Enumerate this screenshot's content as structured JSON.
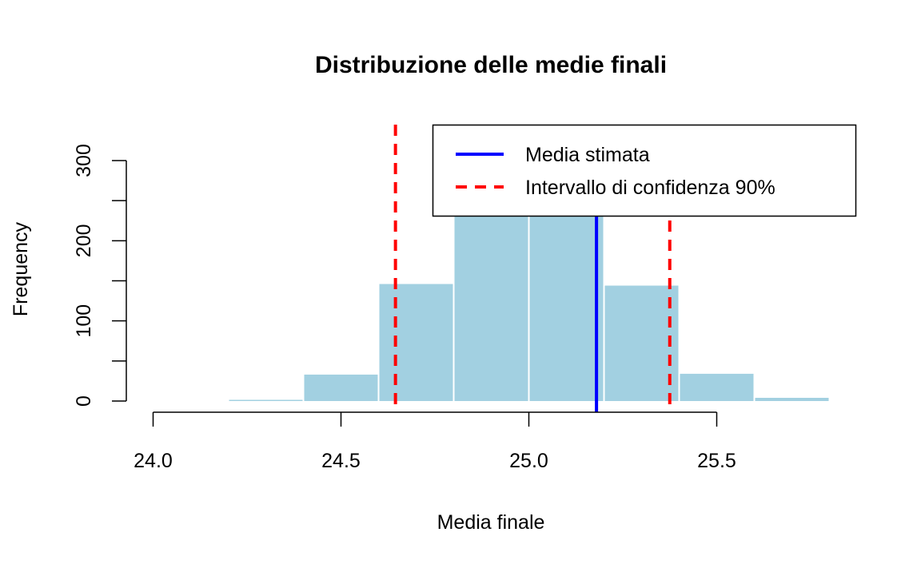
{
  "chart_data": {
    "type": "histogram",
    "title": "Distribuzione delle medie finali",
    "xlabel": "Media finale",
    "ylabel": "Frequency",
    "xlim": [
      24.0,
      25.8
    ],
    "ylim": [
      0,
      300
    ],
    "x_ticks": [
      24.0,
      24.5,
      25.0,
      25.5
    ],
    "x_tick_labels": [
      "24.0",
      "24.5",
      "25.0",
      "25.5"
    ],
    "y_ticks": [
      0,
      50,
      100,
      150,
      200,
      250,
      300
    ],
    "y_tick_labels": [
      "0",
      "",
      "100",
      "",
      "200",
      "",
      "300"
    ],
    "bins": [
      {
        "x0": 24.2,
        "x1": 24.4,
        "count": 1
      },
      {
        "x0": 24.4,
        "x1": 24.6,
        "count": 33
      },
      {
        "x0": 24.6,
        "x1": 24.8,
        "count": 146
      },
      {
        "x0": 24.8,
        "x1": 25.0,
        "count": 320
      },
      {
        "x0": 25.0,
        "x1": 25.2,
        "count": 318
      },
      {
        "x0": 25.2,
        "x1": 25.4,
        "count": 144
      },
      {
        "x0": 25.4,
        "x1": 25.6,
        "count": 34
      },
      {
        "x0": 25.6,
        "x1": 25.8,
        "count": 4
      }
    ],
    "bar_color": "#a2d0e1",
    "lines": [
      {
        "name": "Media stimata",
        "x": 25.18,
        "color": "#0000ff",
        "style": "solid"
      },
      {
        "name": "Intervallo di confidenza 90%",
        "x": 24.645,
        "color": "#ff0000",
        "style": "dashed"
      },
      {
        "name": "Intervallo di confidenza 90%",
        "x": 25.375,
        "color": "#ff0000",
        "style": "dashed"
      }
    ],
    "legend": {
      "position": "top-right",
      "entries": [
        {
          "label": "Media stimata",
          "color": "#0000ff",
          "style": "solid"
        },
        {
          "label": "Intervallo di confidenza 90%",
          "color": "#ff0000",
          "style": "dashed"
        }
      ]
    }
  }
}
